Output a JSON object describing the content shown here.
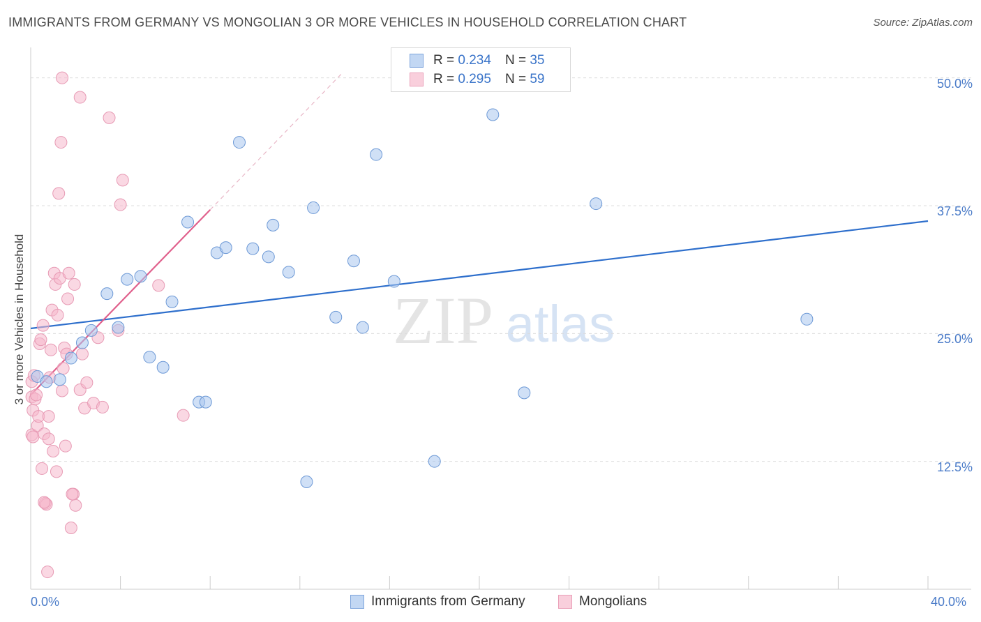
{
  "header": {
    "title": "IMMIGRANTS FROM GERMANY VS MONGOLIAN 3 OR MORE VEHICLES IN HOUSEHOLD CORRELATION CHART",
    "source": "Source: ZipAtlas.com"
  },
  "legend": {
    "series1": {
      "r_label": "R = ",
      "r_value": "0.234",
      "n_label": "N = ",
      "n_value": "35"
    },
    "series2": {
      "r_label": "R = ",
      "r_value": "0.295",
      "n_label": "N = ",
      "n_value": "59"
    }
  },
  "watermark": {
    "zip": "ZIP",
    "atlas": "atlas"
  },
  "chart_data": {
    "type": "scatter",
    "title": "IMMIGRANTS FROM GERMANY VS MONGOLIAN 3 OR MORE VEHICLES IN HOUSEHOLD CORRELATION CHART",
    "xlabel": "",
    "ylabel": "3 or more Vehicles in Household",
    "xlim": [
      0,
      40
    ],
    "ylim": [
      0,
      52.5
    ],
    "x_tick_labels": [
      "0.0%",
      "40.0%"
    ],
    "y_ticks": [
      12.5,
      25.0,
      37.5,
      50.0
    ],
    "y_tick_labels": [
      "12.5%",
      "25.0%",
      "37.5%",
      "50.0%"
    ],
    "grid": true,
    "colors": {
      "series1": "#a9c6ee",
      "series1_line": "#2e6fcc",
      "series2": "#f5b8cc",
      "series2_line": "#e0608c"
    },
    "series": [
      {
        "name": "Immigrants from Germany",
        "trend": {
          "x": [
            0,
            40
          ],
          "y": [
            25.5,
            36.0
          ]
        },
        "points": [
          [
            0.3,
            20.8
          ],
          [
            0.7,
            20.3
          ],
          [
            1.3,
            20.5
          ],
          [
            1.8,
            22.6
          ],
          [
            2.3,
            24.1
          ],
          [
            2.7,
            25.3
          ],
          [
            3.4,
            28.9
          ],
          [
            3.9,
            25.6
          ],
          [
            4.3,
            30.3
          ],
          [
            4.9,
            30.6
          ],
          [
            5.3,
            22.7
          ],
          [
            5.9,
            21.7
          ],
          [
            6.3,
            28.1
          ],
          [
            7.0,
            35.9
          ],
          [
            7.5,
            18.3
          ],
          [
            7.8,
            18.3
          ],
          [
            8.3,
            32.9
          ],
          [
            8.7,
            33.4
          ],
          [
            9.3,
            43.7
          ],
          [
            9.9,
            33.3
          ],
          [
            10.6,
            32.5
          ],
          [
            10.8,
            35.6
          ],
          [
            11.5,
            31.0
          ],
          [
            12.3,
            10.5
          ],
          [
            12.6,
            37.3
          ],
          [
            13.6,
            26.6
          ],
          [
            14.4,
            32.1
          ],
          [
            14.8,
            25.6
          ],
          [
            15.4,
            42.5
          ],
          [
            16.2,
            30.1
          ],
          [
            18.0,
            12.5
          ],
          [
            20.6,
            46.4
          ],
          [
            22.0,
            19.2
          ],
          [
            25.2,
            37.7
          ],
          [
            34.6,
            26.4
          ]
        ]
      },
      {
        "name": "Mongolians",
        "trend": {
          "x": [
            0,
            8.0
          ],
          "y": [
            19.0,
            37.1
          ]
        },
        "trend_dashed": {
          "x": [
            8.0,
            13.9
          ],
          "y": [
            37.1,
            50.5
          ]
        },
        "points": [
          [
            0.05,
            20.3
          ],
          [
            0.05,
            18.8
          ],
          [
            0.05,
            15.1
          ],
          [
            0.1,
            14.9
          ],
          [
            0.1,
            17.5
          ],
          [
            0.15,
            20.9
          ],
          [
            0.2,
            18.6
          ],
          [
            0.25,
            19.0
          ],
          [
            0.3,
            16.0
          ],
          [
            0.35,
            16.9
          ],
          [
            0.4,
            24.0
          ],
          [
            0.45,
            24.4
          ],
          [
            0.5,
            11.8
          ],
          [
            0.55,
            25.8
          ],
          [
            0.6,
            15.2
          ],
          [
            0.65,
            8.4
          ],
          [
            0.7,
            8.3
          ],
          [
            0.75,
            1.7
          ],
          [
            0.8,
            16.9
          ],
          [
            0.8,
            14.7
          ],
          [
            0.85,
            20.7
          ],
          [
            0.9,
            23.4
          ],
          [
            0.95,
            27.3
          ],
          [
            1.0,
            13.5
          ],
          [
            1.05,
            30.9
          ],
          [
            1.1,
            29.8
          ],
          [
            1.15,
            11.5
          ],
          [
            1.2,
            26.8
          ],
          [
            1.25,
            38.7
          ],
          [
            1.3,
            30.4
          ],
          [
            1.35,
            43.7
          ],
          [
            1.4,
            19.4
          ],
          [
            1.45,
            21.6
          ],
          [
            1.5,
            23.6
          ],
          [
            1.55,
            14.0
          ],
          [
            1.6,
            23.0
          ],
          [
            1.65,
            28.4
          ],
          [
            1.7,
            30.9
          ],
          [
            1.8,
            6.0
          ],
          [
            1.9,
            9.3
          ],
          [
            1.95,
            29.8
          ],
          [
            2.0,
            8.2
          ],
          [
            1.4,
            50.0
          ],
          [
            1.85,
            9.3
          ],
          [
            2.2,
            48.1
          ],
          [
            2.2,
            19.5
          ],
          [
            2.3,
            23.0
          ],
          [
            2.4,
            17.7
          ],
          [
            2.5,
            20.2
          ],
          [
            2.8,
            18.2
          ],
          [
            3.0,
            24.6
          ],
          [
            3.2,
            17.8
          ],
          [
            3.5,
            46.1
          ],
          [
            3.9,
            25.3
          ],
          [
            4.0,
            37.6
          ],
          [
            4.1,
            40.0
          ],
          [
            5.7,
            29.7
          ],
          [
            6.8,
            17.0
          ],
          [
            0.6,
            8.5
          ]
        ]
      }
    ]
  },
  "bottom_legend": {
    "series1_label": "Immigrants from Germany",
    "series2_label": "Mongolians"
  }
}
